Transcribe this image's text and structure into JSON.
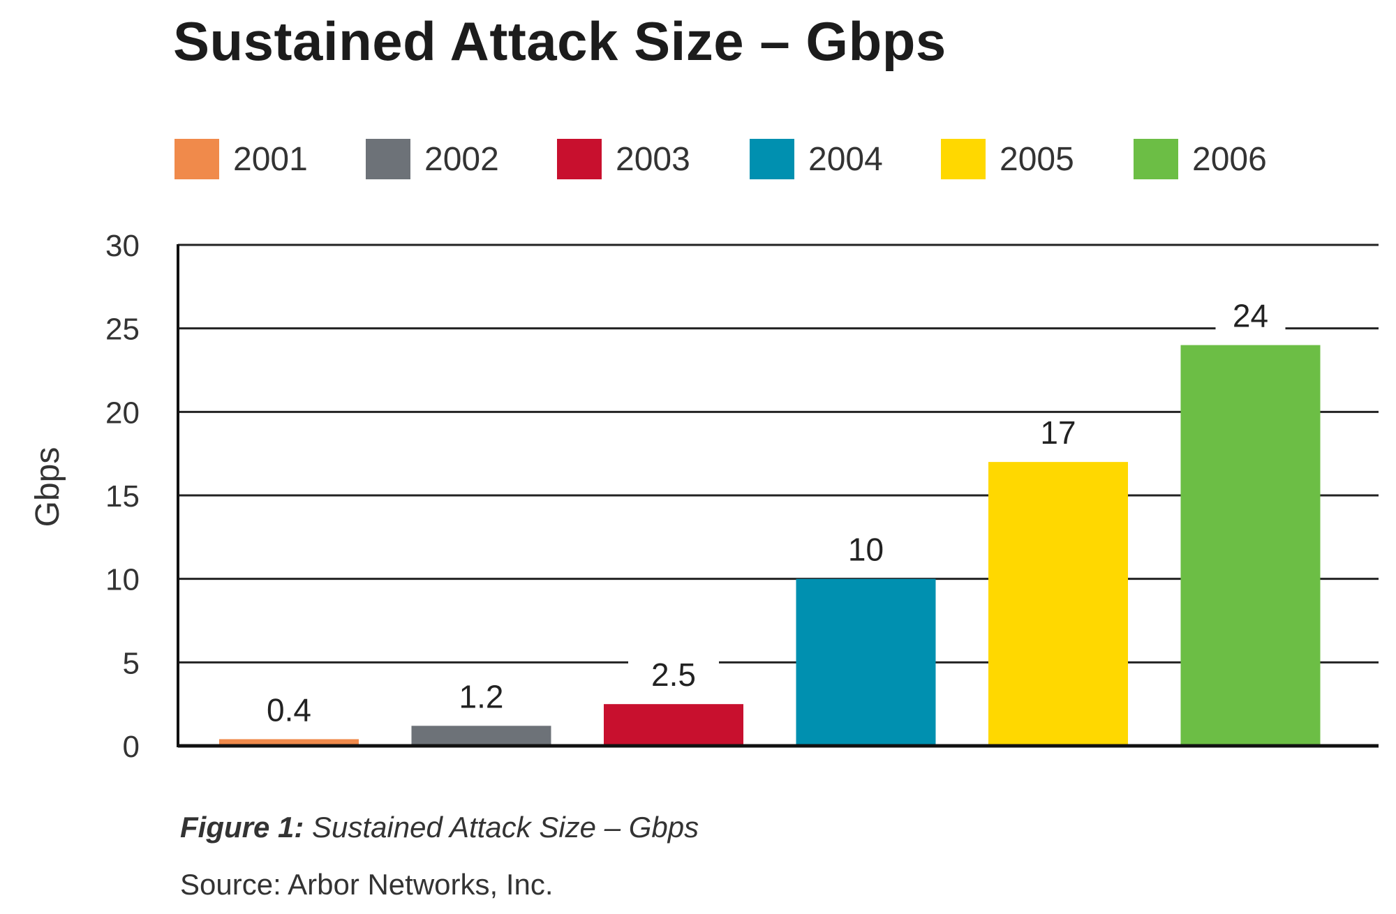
{
  "chart_data": {
    "type": "bar",
    "title": "Sustained Attack Size – Gbps",
    "ylabel": "Gbps",
    "xlabel": "",
    "ylim": [
      0,
      30
    ],
    "yticks": [
      0,
      5,
      10,
      15,
      20,
      25,
      30
    ],
    "grid": true,
    "legend_position": "top",
    "categories": [
      "2001",
      "2002",
      "2003",
      "2004",
      "2005",
      "2006"
    ],
    "values": [
      0.4,
      1.2,
      2.5,
      10,
      17,
      24
    ],
    "data_labels": [
      "0.4",
      "1.2",
      "2.5",
      "10",
      "17",
      "24"
    ],
    "colors": [
      "#F08A4B",
      "#6D7278",
      "#C8102E",
      "#0090B0",
      "#FFD800",
      "#6CBE45"
    ]
  },
  "caption": {
    "figure_label": "Figure 1:",
    "figure_text": "Sustained Attack Size – Gbps"
  },
  "source": "Source: Arbor Networks, Inc."
}
